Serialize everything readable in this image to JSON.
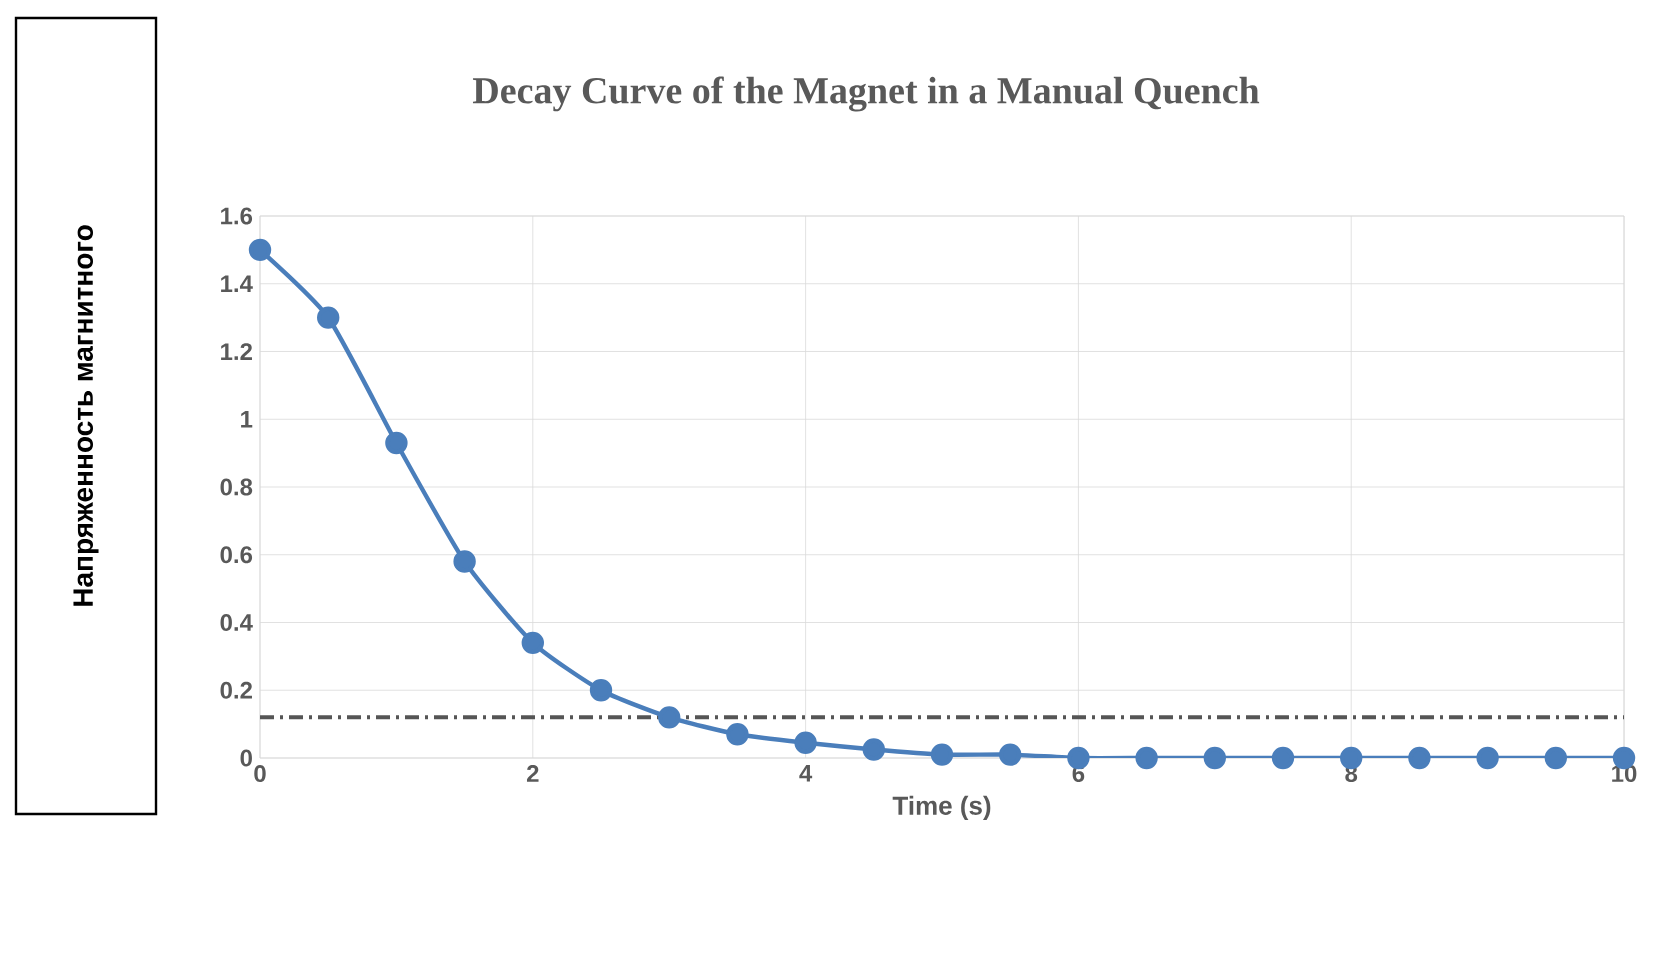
{
  "chart_data": {
    "type": "line",
    "title": "Decay Curve of the Magnet in a Manual Quench",
    "xlabel": "Time (s)",
    "ylabel": "Напряженность магнитного",
    "x": [
      0,
      0.5,
      1,
      1.5,
      2,
      2.5,
      3,
      3.5,
      4,
      4.5,
      5,
      5.5,
      6,
      6.5,
      7,
      7.5,
      8,
      8.5,
      9,
      9.5,
      10
    ],
    "series": [
      {
        "color": "#4a7ebb",
        "values": [
          1.5,
          1.3,
          0.93,
          0.58,
          0.34,
          0.2,
          0.12,
          0.07,
          0.045,
          0.025,
          0.01,
          0.01,
          0,
          0,
          0,
          0,
          0,
          0,
          0,
          0,
          0
        ]
      }
    ],
    "xlim": [
      0,
      10
    ],
    "ylim": [
      0,
      1.6
    ],
    "xticks": [
      0,
      2,
      4,
      6,
      8,
      10
    ],
    "yticks": [
      0,
      0.2,
      0.4,
      0.6,
      0.8,
      1,
      1.2,
      1.4,
      1.6
    ],
    "grid": true,
    "marker": "circle",
    "line_style": "solid",
    "ref_lines": [
      {
        "axis": "y",
        "value": 0.12,
        "color": "#555555",
        "line_style": "dashdot"
      }
    ]
  }
}
